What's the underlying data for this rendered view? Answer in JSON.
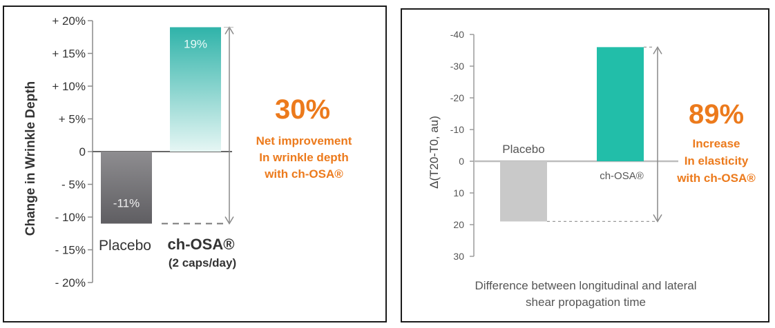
{
  "chart_data": [
    {
      "type": "bar",
      "ylabel": "Change in Wrinkle Depth",
      "xlabel": "",
      "ylim": [
        -20,
        20
      ],
      "yticks": [
        "+ 20%",
        "+ 15%",
        "+ 10%",
        "+ 5%",
        "0",
        "- 5%",
        "- 10%",
        "- 15%",
        "- 20%"
      ],
      "categories": [
        "Placebo",
        "ch-OSA®"
      ],
      "category_sublabels": [
        "",
        "(2 caps/day)"
      ],
      "values": [
        -11,
        19
      ],
      "data_labels": [
        "-11%",
        "19%"
      ],
      "annotation": {
        "big": "30%",
        "lines": [
          "Net improvement",
          "In wrinkle depth",
          "with ch-OSA®"
        ]
      },
      "colors": {
        "placebo": "#7a797c",
        "active": "#3bb9ae",
        "accent": "#ec7a1c",
        "axis": "#8a8a8a"
      }
    },
    {
      "type": "bar",
      "ylabel": "Δ(T20-T0, au)",
      "xlabel": "Difference between longitudinal and lateral shear propagation time",
      "ylim": [
        30,
        -40
      ],
      "yticks": [
        "-40",
        "-30",
        "-20",
        "-10",
        "0",
        "10",
        "20",
        "30"
      ],
      "categories": [
        "Placebo",
        "ch-OSA®"
      ],
      "values": [
        19,
        -36
      ],
      "annotation": {
        "big": "89%",
        "lines": [
          "Increase",
          "In elasticity",
          "with ch-OSA®"
        ]
      },
      "colors": {
        "placebo": "#c9c9c9",
        "active": "#22bea9",
        "accent": "#ec7a1c",
        "axis": "#9a9a9a"
      }
    }
  ]
}
